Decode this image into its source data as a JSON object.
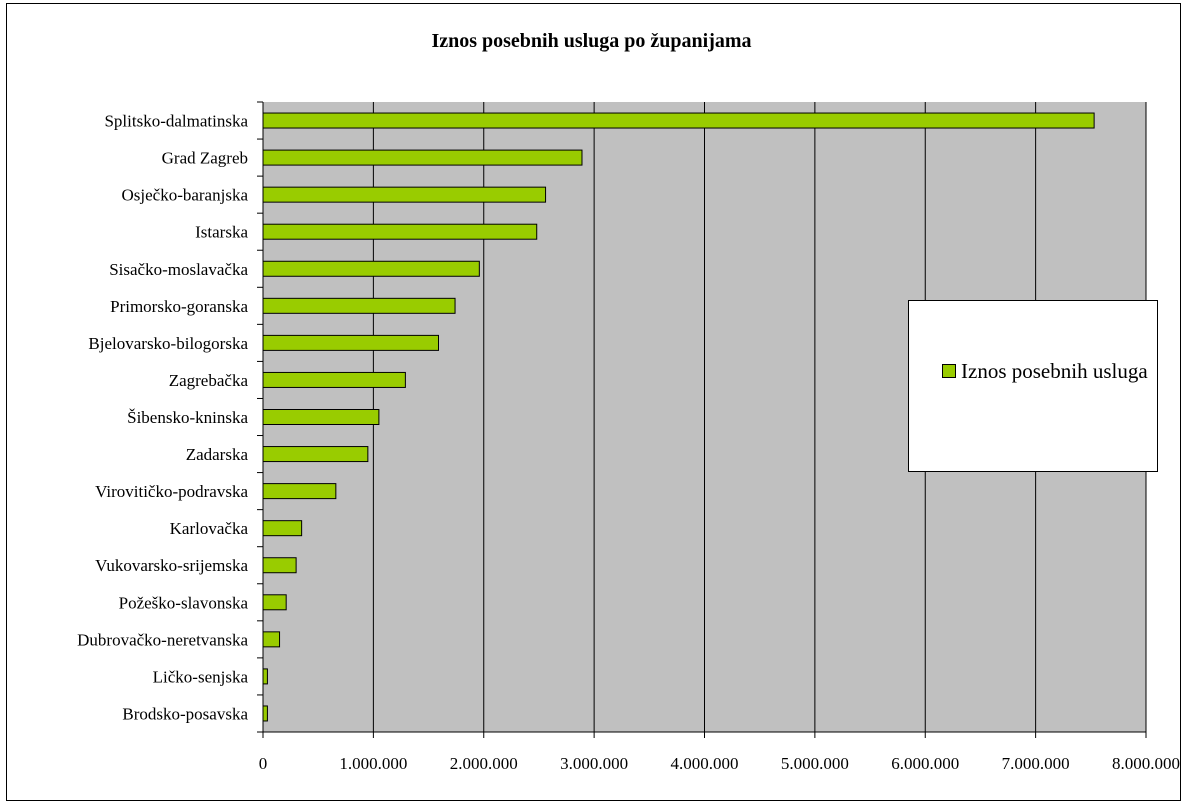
{
  "chart_data": {
    "type": "bar",
    "orientation": "horizontal",
    "title": "Iznos posebnih usluga po županijama",
    "xlabel": "",
    "ylabel": "",
    "categories": [
      "Splitsko-dalmatinska",
      "Grad Zagreb",
      "Osječko-baranjska",
      "Istarska",
      "Sisačko-moslavačka",
      "Primorsko-goranska",
      "Bjelovarsko-bilogorska",
      "Zagrebačka",
      "Šibensko-kninska",
      "Zadarska",
      "Virovitičko-podravska",
      "Karlovačka",
      "Vukovarsko-srijemska",
      "Požeško-slavonska",
      "Dubrovačko-neretvanska",
      "Ličko-senjska",
      "Brodsko-posavska"
    ],
    "series": [
      {
        "name": "Iznos posebnih usluga",
        "color": "#99cc00",
        "values": [
          7530000,
          2890000,
          2560000,
          2480000,
          1960000,
          1740000,
          1590000,
          1290000,
          1050000,
          950000,
          660000,
          350000,
          300000,
          210000,
          150000,
          40000,
          40000
        ]
      }
    ],
    "xlim": [
      0,
      8000000
    ],
    "x_ticks": [
      0,
      1000000,
      2000000,
      3000000,
      4000000,
      5000000,
      6000000,
      7000000,
      8000000
    ],
    "x_tick_labels": [
      "0",
      "1.000.000",
      "2.000.000",
      "3.000.000",
      "4.000.000",
      "5.000.000",
      "6.000.000",
      "7.000.000",
      "8.000.000"
    ],
    "grid": "vertical",
    "plot_background": "#c0c0c0",
    "legend": {
      "position": "right",
      "label": "Iznos posebnih usluga"
    }
  }
}
